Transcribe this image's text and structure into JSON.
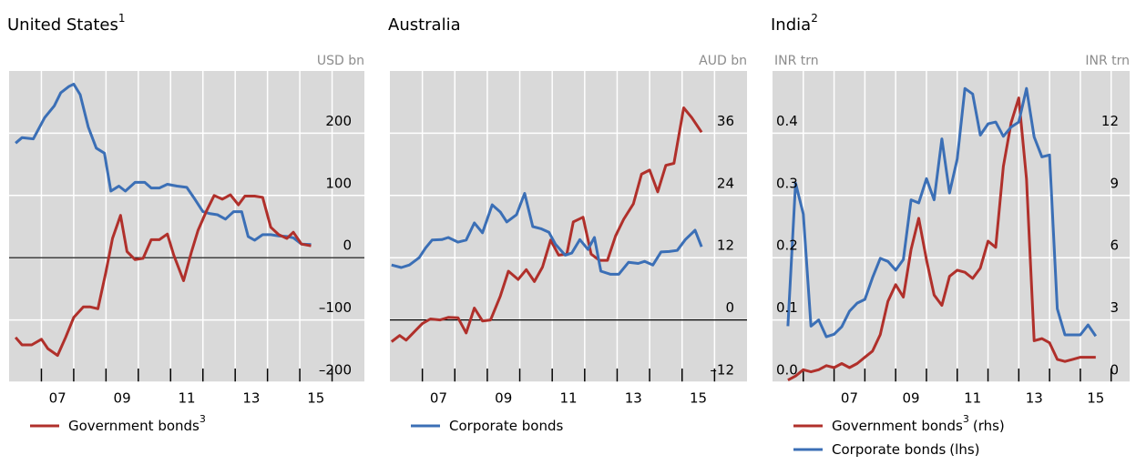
{
  "chart_data": [
    {
      "type": "line",
      "title": "United States",
      "title_note": "1",
      "y_unit": "USD bn",
      "y_side": "right",
      "xlim": [
        2006,
        2017
      ],
      "xticks": [
        {
          "value": 2007.5,
          "label": "07"
        },
        {
          "value": 2009.5,
          "label": "09"
        },
        {
          "value": 2011.5,
          "label": "11"
        },
        {
          "value": 2013.5,
          "label": "13"
        },
        {
          "value": 2015.5,
          "label": "15"
        }
      ],
      "xtick_marks": [
        2007,
        2008,
        2009,
        2010,
        2011,
        2012,
        2013,
        2014,
        2015,
        2016
      ],
      "ylim": [
        -200,
        300
      ],
      "yticks": [
        {
          "value": -200,
          "label": "–200"
        },
        {
          "value": -100,
          "label": "–100"
        },
        0,
        100,
        200
      ],
      "zero_line": true,
      "grid": true,
      "series": [
        {
          "color": "#3b6fb6",
          "x": [
            2006.2,
            2006.4,
            2006.75,
            2007.1,
            2007.4,
            2007.6,
            2007.85,
            2008.0,
            2008.2,
            2008.45,
            2008.7,
            2008.95,
            2009.15,
            2009.4,
            2009.6,
            2009.9,
            2010.2,
            2010.4,
            2010.65,
            2010.9,
            2011.2,
            2011.5,
            2011.75,
            2012.0,
            2012.2,
            2012.45,
            2012.7,
            2012.95,
            2013.2,
            2013.4,
            2013.6,
            2013.85,
            2014.1,
            2014.35,
            2014.6,
            2014.8,
            2015.05,
            2015.35
          ],
          "values": [
            184,
            193,
            191,
            225,
            244,
            265,
            275,
            279,
            262,
            210,
            176,
            168,
            107,
            115,
            107,
            121,
            121,
            112,
            112,
            118,
            115,
            113,
            94,
            74,
            71,
            69,
            62,
            74,
            74,
            34,
            28,
            37,
            37,
            35,
            34,
            32,
            22,
            21
          ]
        },
        {
          "name": "Government bonds",
          "name_note": "3",
          "color": "#b0302b",
          "x": [
            2006.2,
            2006.4,
            2006.7,
            2007.0,
            2007.2,
            2007.5,
            2007.75,
            2008.0,
            2008.3,
            2008.5,
            2008.75,
            2009.0,
            2009.2,
            2009.45,
            2009.65,
            2009.9,
            2010.15,
            2010.4,
            2010.65,
            2010.9,
            2011.1,
            2011.4,
            2011.65,
            2011.85,
            2012.1,
            2012.35,
            2012.6,
            2012.85,
            2013.1,
            2013.3,
            2013.6,
            2013.85,
            2014.1,
            2014.35,
            2014.6,
            2014.8,
            2015.05,
            2015.35
          ],
          "values": [
            -128,
            -140,
            -140,
            -131,
            -146,
            -157,
            -128,
            -96,
            -79,
            -79,
            -82,
            -22,
            31,
            68,
            10,
            -3,
            -1,
            29,
            29,
            38,
            4,
            -37,
            10,
            44,
            74,
            100,
            94,
            101,
            85,
            99,
            99,
            97,
            49,
            37,
            31,
            41,
            22,
            19
          ]
        }
      ]
    },
    {
      "type": "line",
      "title": "Australia",
      "y_unit": "AUD bn",
      "y_side": "right",
      "xlim": [
        2006,
        2017
      ],
      "xticks": [
        {
          "value": 2007.5,
          "label": "07"
        },
        {
          "value": 2009.5,
          "label": "09"
        },
        {
          "value": 2011.5,
          "label": "11"
        },
        {
          "value": 2013.5,
          "label": "13"
        },
        {
          "value": 2015.5,
          "label": "15"
        }
      ],
      "xtick_marks": [
        2007,
        2008,
        2009,
        2010,
        2011,
        2012,
        2013,
        2014,
        2015,
        2016
      ],
      "ylim": [
        -12,
        48
      ],
      "yticks": [
        {
          "value": -12,
          "label": "–12"
        },
        0,
        12,
        24,
        36
      ],
      "zero_line": true,
      "grid": true,
      "series": [
        {
          "color": "#b0302b",
          "x": [
            2006.05,
            2006.3,
            2006.5,
            2006.75,
            2007.0,
            2007.25,
            2007.55,
            2007.8,
            2008.1,
            2008.35,
            2008.6,
            2008.85,
            2009.1,
            2009.4,
            2009.65,
            2009.95,
            2010.2,
            2010.45,
            2010.7,
            2010.95,
            2011.2,
            2011.45,
            2011.65,
            2011.95,
            2012.2,
            2012.45,
            2012.7,
            2012.95,
            2013.2,
            2013.5,
            2013.75,
            2014.0,
            2014.25,
            2014.5,
            2014.75,
            2015.05,
            2015.3,
            2015.6
          ],
          "values": [
            -4.2,
            -3.0,
            -3.9,
            -2.3,
            -0.7,
            0.2,
            0,
            0.5,
            0.4,
            -2.5,
            2.3,
            -0.2,
            0,
            4.6,
            9.4,
            7.8,
            9.7,
            7.4,
            10.2,
            15.4,
            12.5,
            12.7,
            18.9,
            19.8,
            12.7,
            11.5,
            11.5,
            16.2,
            19.4,
            22.4,
            28.1,
            28.9,
            24.7,
            29.8,
            30.2,
            40.9,
            39.0,
            36.2
          ]
        },
        {
          "name": "Corporate bonds",
          "color": "#3b6fb6",
          "x": [
            2006.05,
            2006.35,
            2006.6,
            2006.9,
            2007.1,
            2007.3,
            2007.6,
            2007.8,
            2008.1,
            2008.35,
            2008.6,
            2008.85,
            2009.15,
            2009.4,
            2009.6,
            2009.9,
            2010.15,
            2010.4,
            2010.65,
            2010.9,
            2011.1,
            2011.4,
            2011.6,
            2011.85,
            2012.1,
            2012.3,
            2012.5,
            2012.8,
            2013.05,
            2013.35,
            2013.65,
            2013.85,
            2014.1,
            2014.35,
            2014.6,
            2014.85,
            2015.1,
            2015.4,
            2015.6
          ],
          "values": [
            10.6,
            10.1,
            10.6,
            12.0,
            13.9,
            15.4,
            15.5,
            15.9,
            15.0,
            15.4,
            18.7,
            16.8,
            22.2,
            20.8,
            18.9,
            20.3,
            24.4,
            18.0,
            17.6,
            16.9,
            14.6,
            12.5,
            12.9,
            15.5,
            13.6,
            15.9,
            9.4,
            8.8,
            8.8,
            11.1,
            10.9,
            11.3,
            10.6,
            13.1,
            13.2,
            13.4,
            15.5,
            17.3,
            14.1
          ]
        }
      ]
    },
    {
      "type": "line",
      "title": "India",
      "title_note": "2",
      "y_unit": "INR trn",
      "y2_unit": "INR trn",
      "y_side": "left",
      "xlim": [
        2005,
        2016.6
      ],
      "xticks": [
        {
          "value": 2007.5,
          "label": "07"
        },
        {
          "value": 2009.5,
          "label": "09"
        },
        {
          "value": 2011.5,
          "label": "11"
        },
        {
          "value": 2013.5,
          "label": "13"
        },
        {
          "value": 2015.5,
          "label": "15"
        }
      ],
      "xtick_marks": [
        2006,
        2007,
        2008,
        2009,
        2010,
        2011,
        2012,
        2013,
        2014,
        2015,
        2016
      ],
      "ylim": [
        0,
        0.5
      ],
      "yticks": [
        {
          "value": 0,
          "label": "0.0"
        },
        0.1,
        0.2,
        0.3,
        0.4
      ],
      "y2lim": [
        0,
        15
      ],
      "y2ticks": [
        0,
        3,
        6,
        9,
        12
      ],
      "zero_line": false,
      "grid": true,
      "series": [
        {
          "name": "Government bonds",
          "name_note": "3",
          "axis_note": "(rhs)",
          "axis": "y2",
          "color": "#b0302b",
          "x": [
            2005.5,
            2005.75,
            2006.0,
            2006.25,
            2006.5,
            2006.75,
            2007.0,
            2007.25,
            2007.5,
            2007.75,
            2008.0,
            2008.25,
            2008.5,
            2008.75,
            2009.0,
            2009.25,
            2009.5,
            2009.75,
            2010.0,
            2010.25,
            2010.5,
            2010.75,
            2011.0,
            2011.25,
            2011.5,
            2011.75,
            2012.0,
            2012.25,
            2012.5,
            2012.75,
            2013.0,
            2013.25,
            2013.5,
            2013.75,
            2014.0,
            2014.25,
            2014.5,
            2014.75,
            2015.0,
            2015.25,
            2015.5
          ],
          "values": [
            0.1,
            0.3,
            0.6,
            0.5,
            0.6,
            0.8,
            0.7,
            0.9,
            0.7,
            0.9,
            1.2,
            1.5,
            2.3,
            3.9,
            4.7,
            4.1,
            6.4,
            7.9,
            5.9,
            4.2,
            3.7,
            5.1,
            5.4,
            5.3,
            5.0,
            5.5,
            6.8,
            6.5,
            10.4,
            12.5,
            13.7,
            9.8,
            2.0,
            2.1,
            1.9,
            1.1,
            1.0,
            1.1,
            1.2,
            1.2,
            1.2
          ]
        },
        {
          "name": "Corporate bonds",
          "axis_note": "(lhs)",
          "color": "#3b6fb6",
          "x": [
            2005.5,
            2005.75,
            2006.0,
            2006.25,
            2006.5,
            2006.75,
            2007.0,
            2007.25,
            2007.5,
            2007.75,
            2008.0,
            2008.25,
            2008.5,
            2008.75,
            2009.0,
            2009.25,
            2009.5,
            2009.75,
            2010.0,
            2010.25,
            2010.5,
            2010.75,
            2011.0,
            2011.25,
            2011.5,
            2011.75,
            2012.0,
            2012.25,
            2012.5,
            2012.75,
            2013.0,
            2013.25,
            2013.5,
            2013.75,
            2014.0,
            2014.25,
            2014.5,
            2014.75,
            2015.0,
            2015.25,
            2015.5
          ],
          "values": [
            0.09,
            0.32,
            0.27,
            0.09,
            0.1,
            0.073,
            0.077,
            0.089,
            0.114,
            0.127,
            0.133,
            0.168,
            0.199,
            0.194,
            0.18,
            0.197,
            0.293,
            0.288,
            0.327,
            0.293,
            0.391,
            0.304,
            0.359,
            0.472,
            0.463,
            0.397,
            0.415,
            0.418,
            0.395,
            0.41,
            0.418,
            0.472,
            0.394,
            0.362,
            0.365,
            0.118,
            0.076,
            0.076,
            0.076,
            0.092,
            0.074
          ]
        }
      ]
    }
  ]
}
